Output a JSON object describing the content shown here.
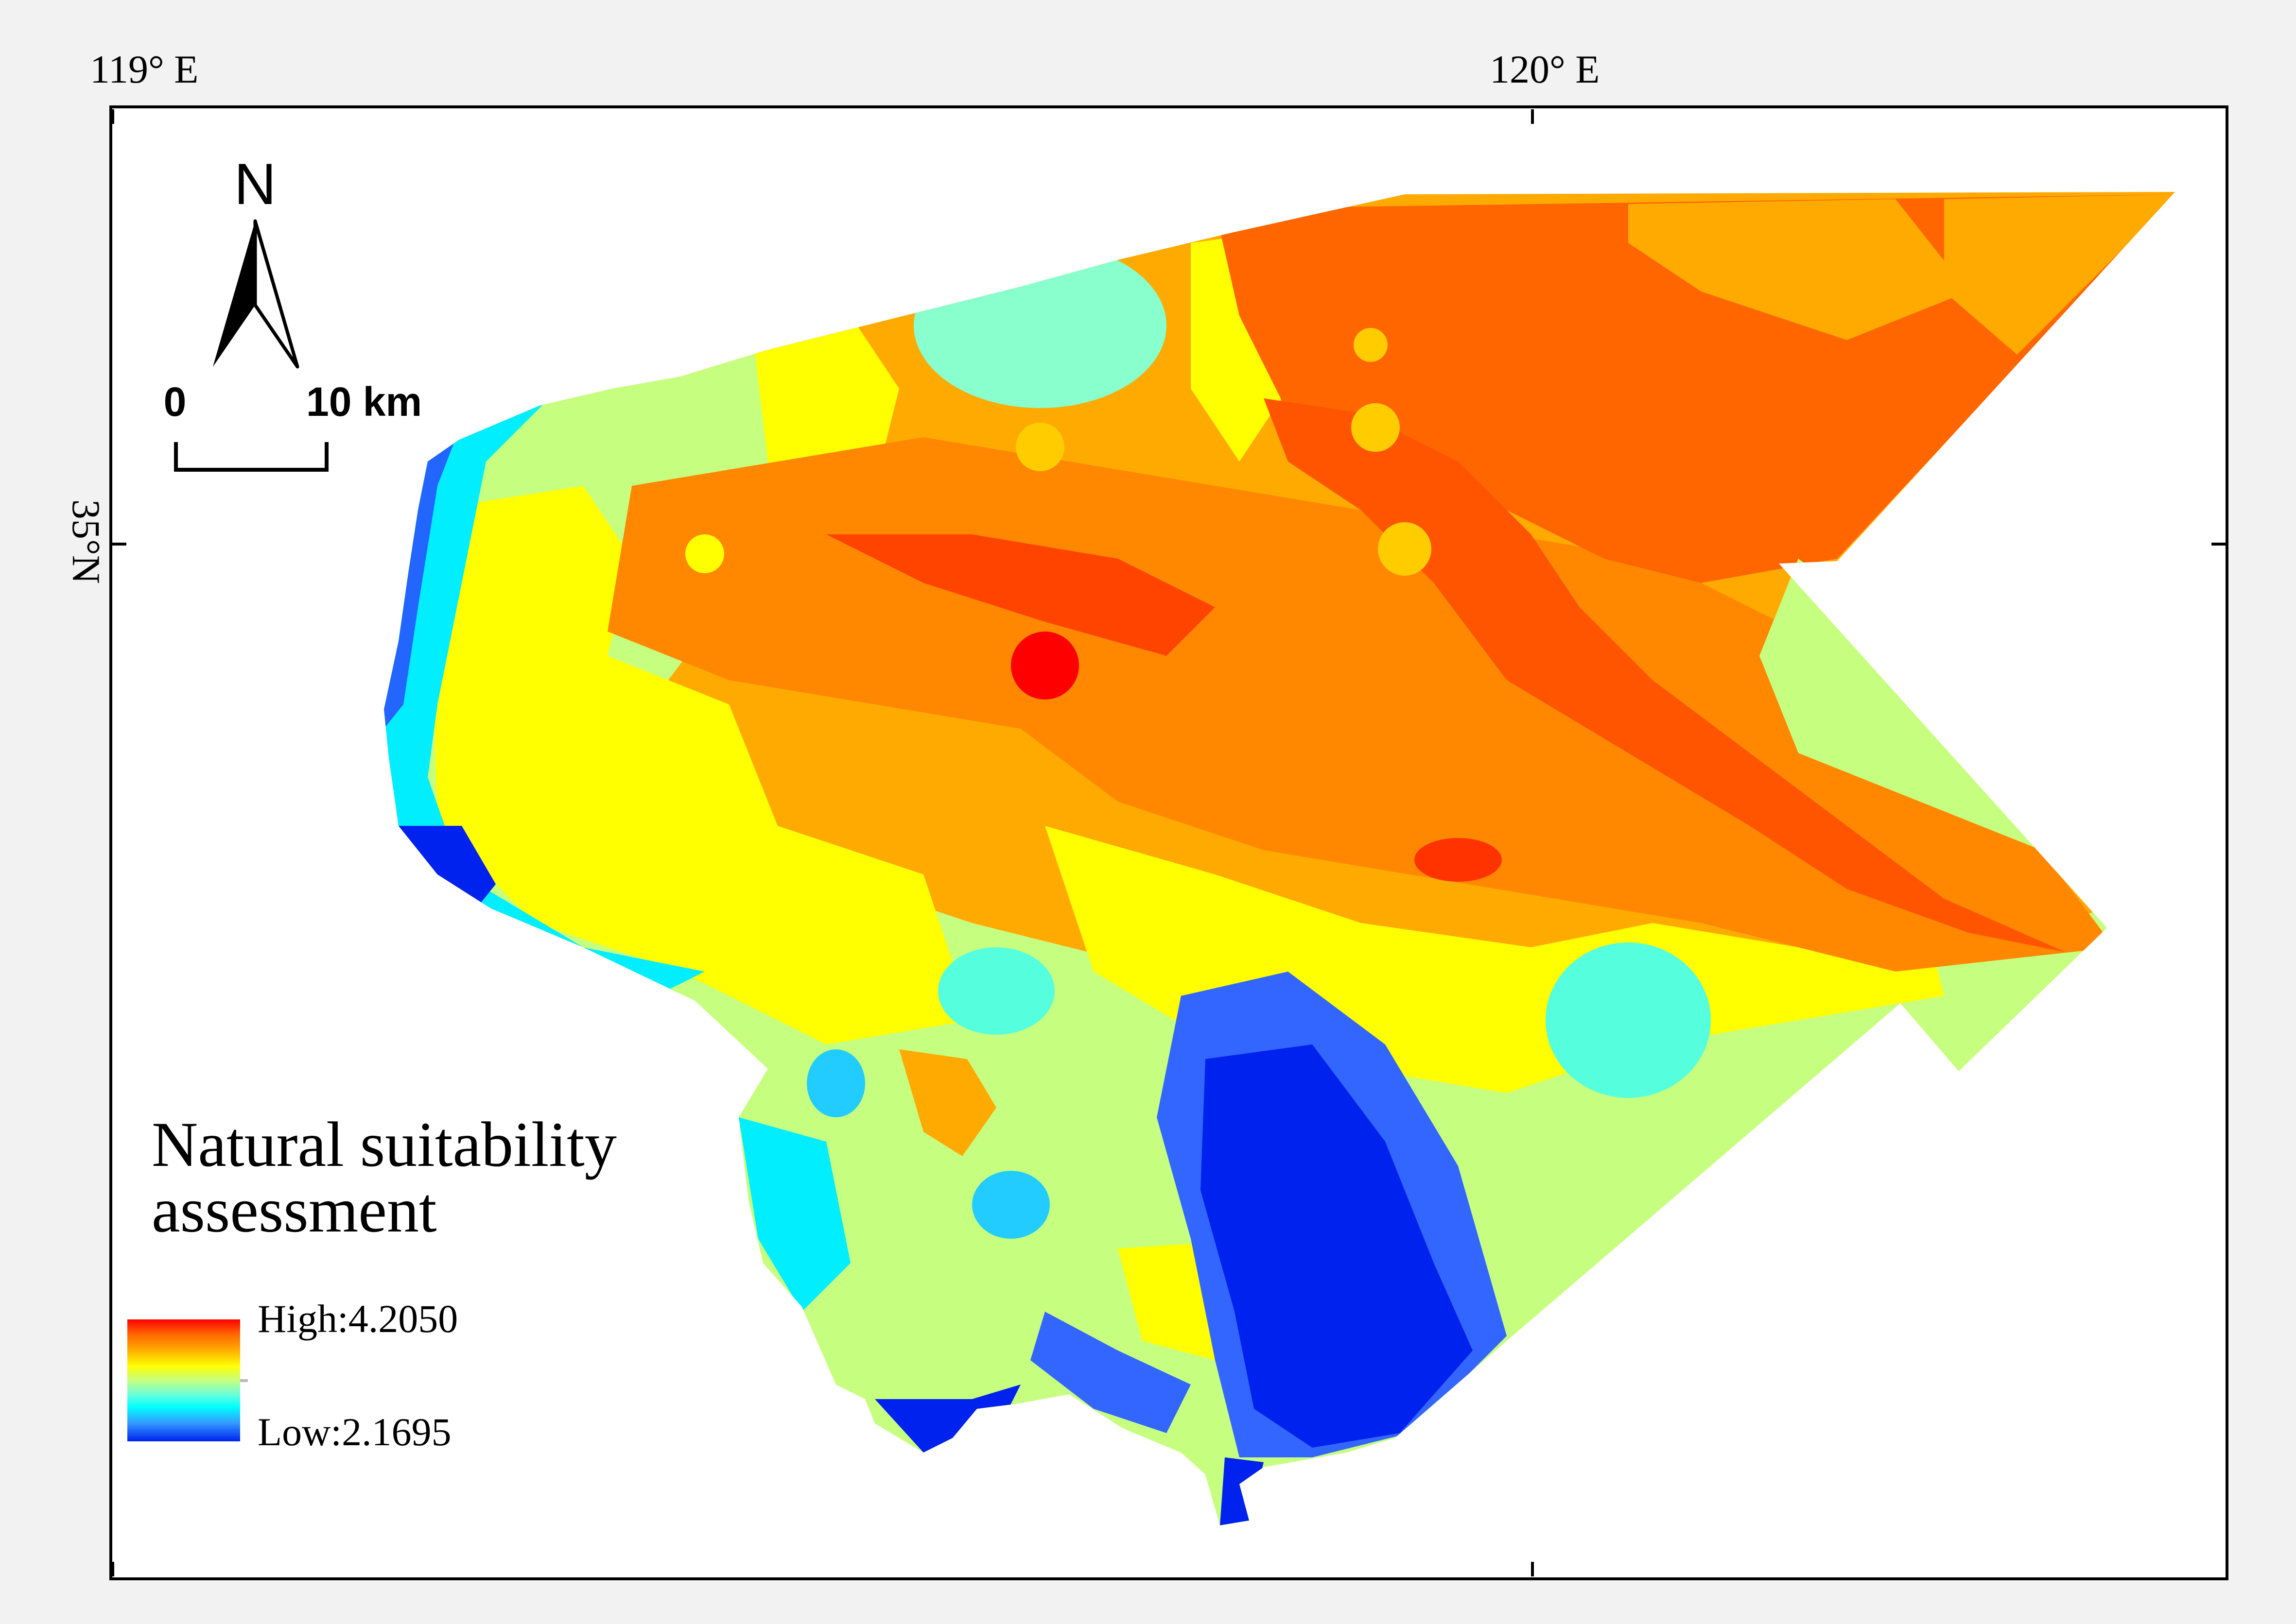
{
  "map": {
    "longitude_labels": [
      "119° E",
      "120° E"
    ],
    "latitude_labels": [
      "35°N"
    ]
  },
  "north_arrow": {
    "letter": "N",
    "icon": "north-arrow-icon"
  },
  "scale_bar": {
    "start_label": "0",
    "end_label": "10 km"
  },
  "legend": {
    "title_line1": "Natural suitability",
    "title_line2": "assessment",
    "high_label": "High:4.2050",
    "low_label": "Low:2.1695",
    "high_value": 4.205,
    "low_value": 2.1695,
    "ramp_colors": [
      "#ff0000",
      "#ff6600",
      "#ffaa00",
      "#ffff00",
      "#c6ff80",
      "#66ffdd",
      "#00ffff",
      "#3399ff",
      "#0022ee"
    ]
  },
  "colors": {
    "frame_background": "#ffffff",
    "page_background": "#f2f2f2",
    "high": "#ff0000",
    "low": "#0022ee"
  }
}
